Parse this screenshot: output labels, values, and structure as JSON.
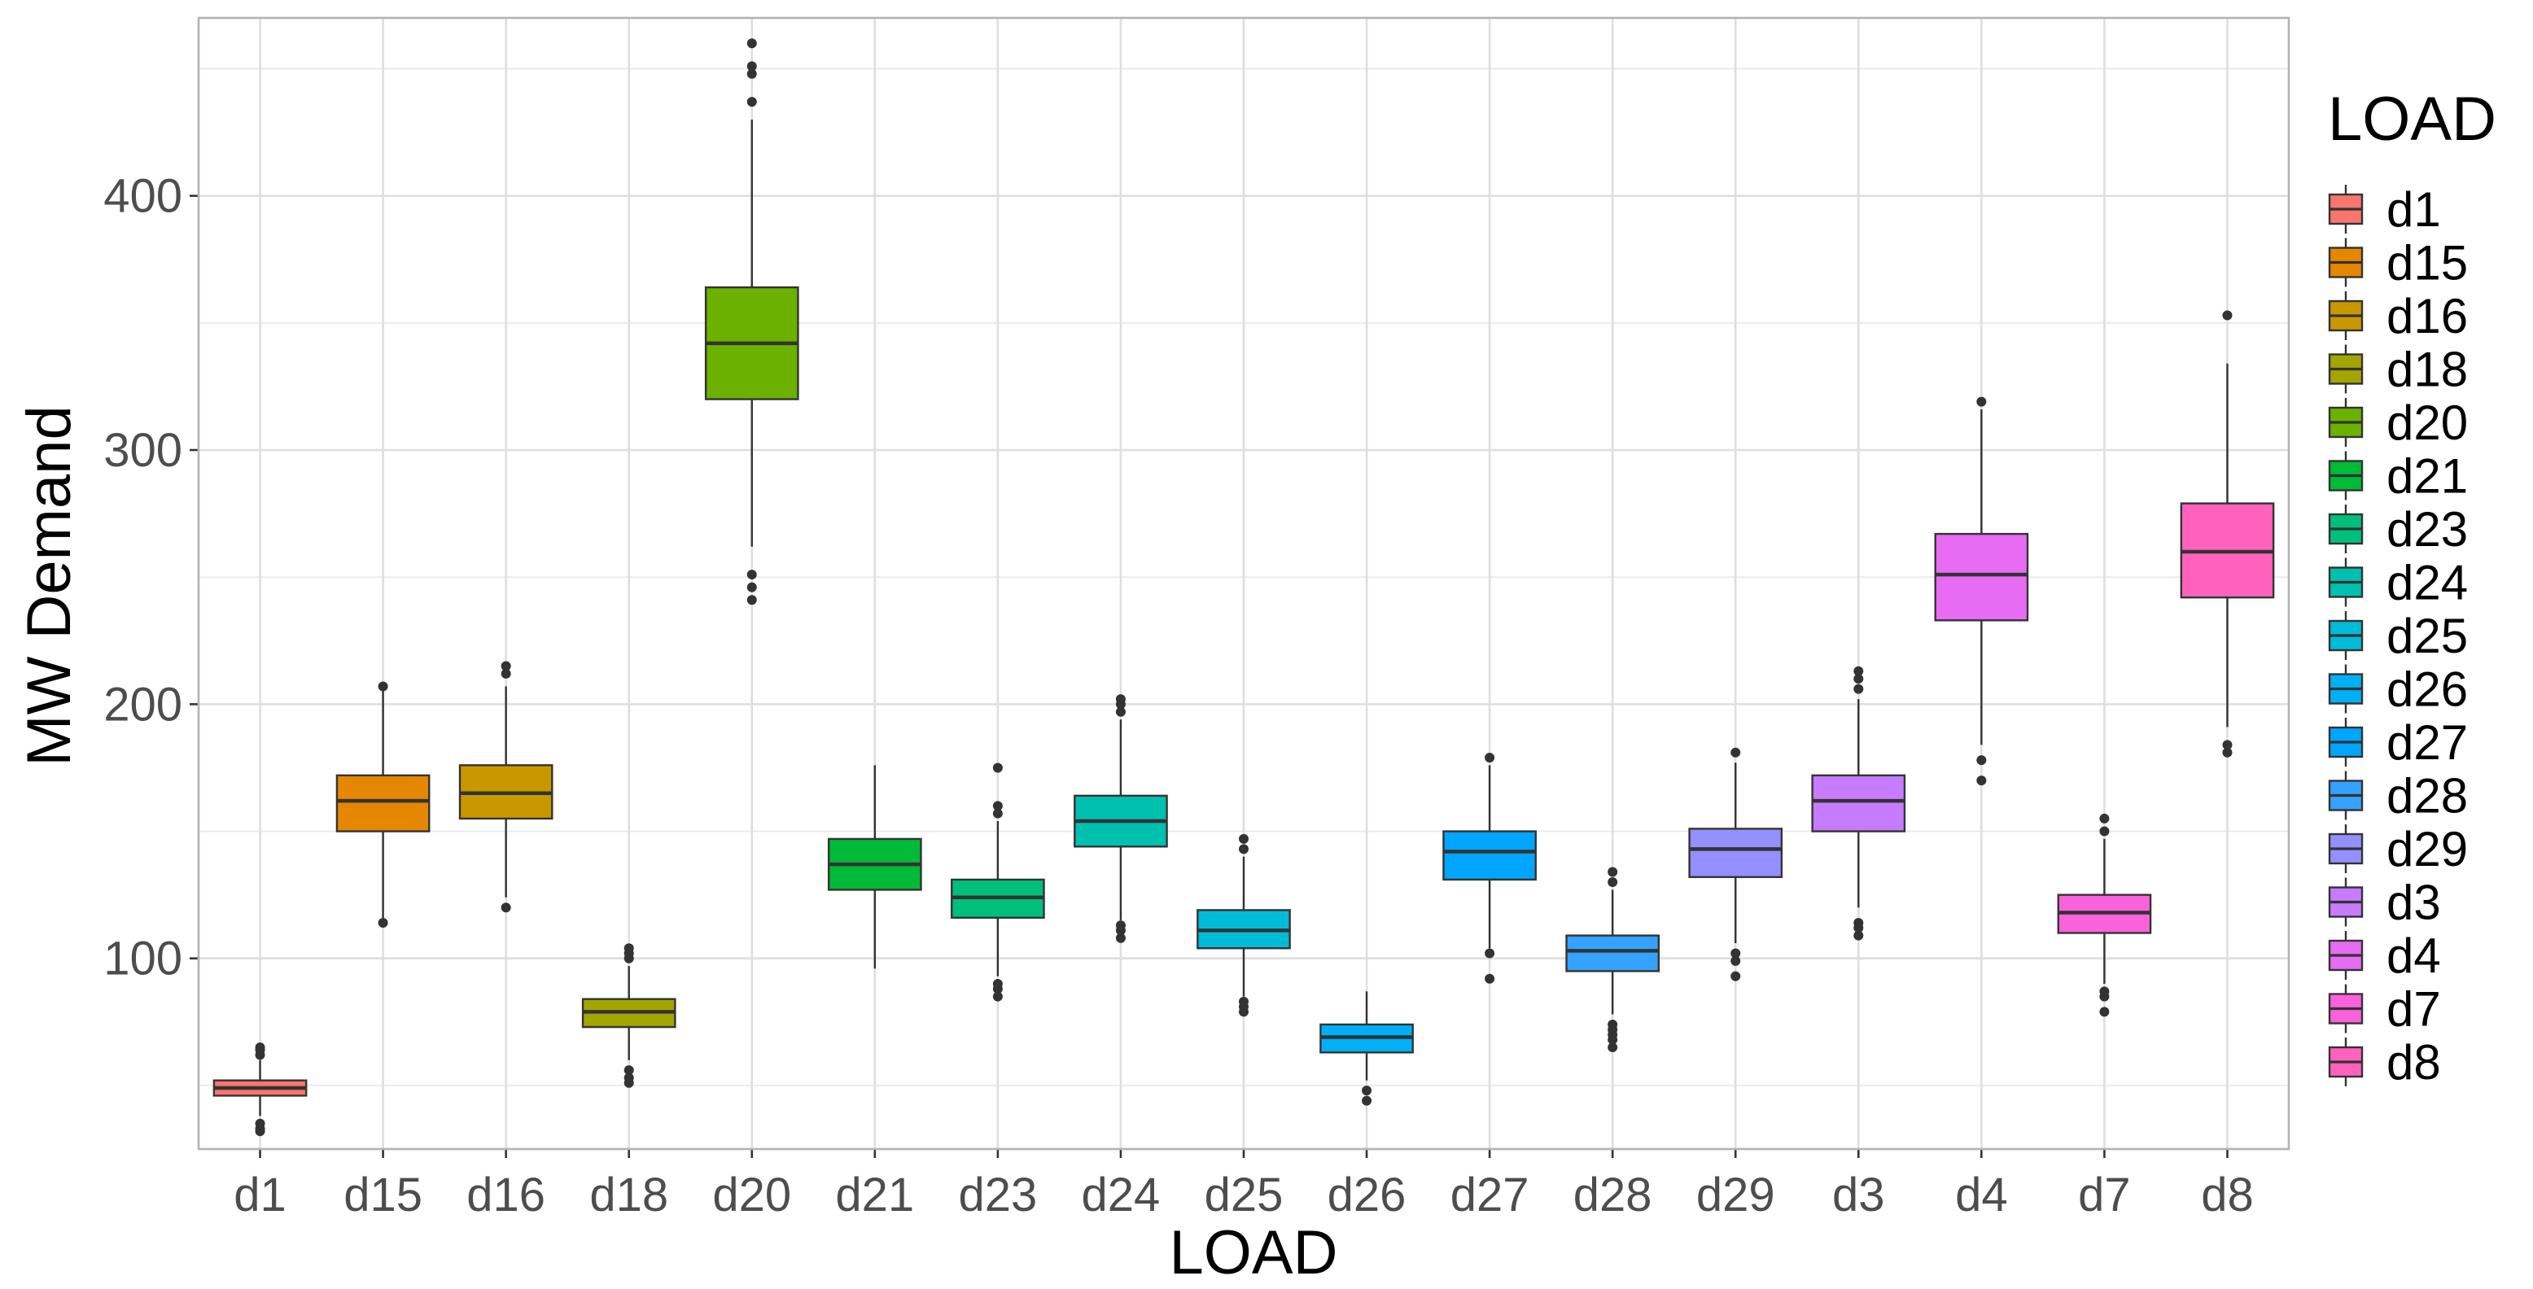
{
  "chart_data": {
    "type": "boxplot",
    "title": "",
    "xlabel": "LOAD",
    "ylabel": "MW Demand",
    "ylim": [
      25,
      470
    ],
    "yticks": [
      100,
      200,
      300,
      400
    ],
    "grid": true,
    "legend": {
      "title": "LOAD",
      "placement": "right"
    },
    "categories": [
      "d1",
      "d15",
      "d16",
      "d18",
      "d20",
      "d21",
      "d23",
      "d24",
      "d25",
      "d26",
      "d27",
      "d28",
      "d29",
      "d3",
      "d4",
      "d7",
      "d8"
    ],
    "series": [
      {
        "name": "d1",
        "color": "#F8766D",
        "min": 38,
        "q1": 46,
        "median": 49,
        "q3": 52,
        "max": 60,
        "outliers": [
          32,
          33,
          35,
          62,
          64,
          65
        ]
      },
      {
        "name": "d15",
        "color": "#E58700",
        "min": 115,
        "q1": 150,
        "median": 162,
        "q3": 172,
        "max": 207,
        "outliers": [
          114,
          207
        ]
      },
      {
        "name": "d16",
        "color": "#C99800",
        "min": 124,
        "q1": 155,
        "median": 165,
        "q3": 176,
        "max": 207,
        "outliers": [
          120,
          212,
          215
        ]
      },
      {
        "name": "d18",
        "color": "#A3A500",
        "min": 60,
        "q1": 73,
        "median": 79,
        "q3": 84,
        "max": 97,
        "outliers": [
          51,
          53,
          56,
          100,
          102,
          104
        ]
      },
      {
        "name": "d20",
        "color": "#6BB100",
        "min": 262,
        "q1": 320,
        "median": 342,
        "q3": 364,
        "max": 430,
        "outliers": [
          241,
          246,
          251,
          437,
          448,
          451,
          460
        ]
      },
      {
        "name": "d21",
        "color": "#00BA38",
        "min": 96,
        "q1": 127,
        "median": 137,
        "q3": 147,
        "max": 176,
        "outliers": []
      },
      {
        "name": "d23",
        "color": "#00BF7D",
        "min": 93,
        "q1": 116,
        "median": 124,
        "q3": 131,
        "max": 154,
        "outliers": [
          85,
          88,
          90,
          157,
          160,
          175
        ]
      },
      {
        "name": "d24",
        "color": "#00C0AF",
        "min": 115,
        "q1": 144,
        "median": 154,
        "q3": 164,
        "max": 194,
        "outliers": [
          108,
          111,
          113,
          197,
          200,
          202
        ]
      },
      {
        "name": "d25",
        "color": "#00BCD8",
        "min": 85,
        "q1": 104,
        "median": 111,
        "q3": 119,
        "max": 140,
        "outliers": [
          79,
          81,
          83,
          143,
          147
        ]
      },
      {
        "name": "d26",
        "color": "#00B0F6",
        "min": 52,
        "q1": 63,
        "median": 69,
        "q3": 74,
        "max": 87,
        "outliers": [
          44,
          48
        ]
      },
      {
        "name": "d27",
        "color": "#00A5FF",
        "min": 104,
        "q1": 131,
        "median": 142,
        "q3": 150,
        "max": 176,
        "outliers": [
          92,
          102,
          179
        ]
      },
      {
        "name": "d28",
        "color": "#35A2FF",
        "min": 78,
        "q1": 95,
        "median": 103,
        "q3": 109,
        "max": 127,
        "outliers": [
          65,
          68,
          70,
          72,
          74,
          130,
          134
        ]
      },
      {
        "name": "d29",
        "color": "#9590FF",
        "min": 106,
        "q1": 132,
        "median": 143,
        "q3": 151,
        "max": 177,
        "outliers": [
          93,
          99,
          102,
          181
        ]
      },
      {
        "name": "d3",
        "color": "#C77CFF",
        "min": 120,
        "q1": 150,
        "median": 162,
        "q3": 172,
        "max": 202,
        "outliers": [
          109,
          112,
          114,
          206,
          210,
          213
        ]
      },
      {
        "name": "d4",
        "color": "#E76BF3",
        "min": 184,
        "q1": 233,
        "median": 251,
        "q3": 267,
        "max": 316,
        "outliers": [
          170,
          178,
          319
        ]
      },
      {
        "name": "d7",
        "color": "#FA62DB",
        "min": 90,
        "q1": 110,
        "median": 118,
        "q3": 125,
        "max": 147,
        "outliers": [
          79,
          85,
          87,
          150,
          155
        ]
      },
      {
        "name": "d8",
        "color": "#FF62BC",
        "min": 191,
        "q1": 242,
        "median": 260,
        "q3": 279,
        "max": 334,
        "outliers": [
          181,
          184,
          353
        ]
      }
    ]
  }
}
